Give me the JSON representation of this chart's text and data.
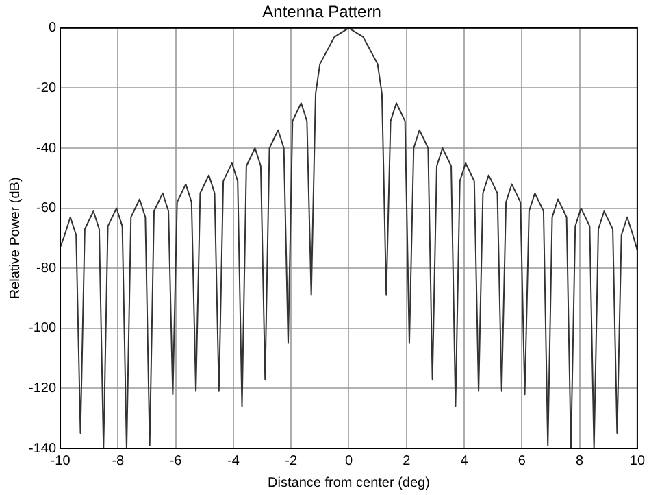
{
  "chart_data": {
    "type": "line",
    "title": "Antenna Pattern",
    "xlabel": "Distance from center (deg)",
    "ylabel": "Relative Power (dB)",
    "x": [
      -10,
      -9.85,
      -9.65,
      -9.45,
      -9.3,
      -9.15,
      -8.85,
      -8.65,
      -8.5,
      -8.35,
      -8.05,
      -7.85,
      -7.7,
      -7.55,
      -7.25,
      -7.05,
      -6.9,
      -6.75,
      -6.45,
      -6.25,
      -6.1,
      -5.95,
      -5.65,
      -5.45,
      -5.3,
      -5.15,
      -4.85,
      -4.65,
      -4.5,
      -4.35,
      -4.05,
      -3.85,
      -3.7,
      -3.55,
      -3.25,
      -3.05,
      -2.9,
      -2.75,
      -2.45,
      -2.25,
      -2.1,
      -1.95,
      -1.65,
      -1.45,
      -1.3,
      -1.15,
      -1,
      -0.5,
      0,
      0.5,
      1,
      1.15,
      1.3,
      1.45,
      1.65,
      1.95,
      2.1,
      2.25,
      2.45,
      2.75,
      2.9,
      3.05,
      3.25,
      3.55,
      3.7,
      3.85,
      4.05,
      4.35,
      4.5,
      4.65,
      4.85,
      5.15,
      5.3,
      5.45,
      5.65,
      5.95,
      6.1,
      6.25,
      6.45,
      6.75,
      6.9,
      7.05,
      7.25,
      7.55,
      7.7,
      7.85,
      8.05,
      8.35,
      8.5,
      8.65,
      8.85,
      9.15,
      9.3,
      9.45,
      9.65,
      9.85,
      10
    ],
    "series": [
      {
        "color": "#333333",
        "values": [
          -73,
          -69,
          -63,
          -69,
          -135,
          -67,
          -61,
          -67,
          -140,
          -66,
          -60,
          -66,
          -140,
          -63,
          -57,
          -63,
          -139,
          -61,
          -55,
          -61,
          -122,
          -58,
          -52,
          -58,
          -121,
          -55,
          -49,
          -55,
          -121,
          -51,
          -45,
          -51,
          -126,
          -46,
          -40,
          -46,
          -117,
          -40,
          -34,
          -40,
          -105,
          -31,
          -25,
          -31,
          -89,
          -22,
          -12,
          -3,
          0,
          -3,
          -12,
          -22,
          -89,
          -31,
          -25,
          -31,
          -105,
          -40,
          -34,
          -40,
          -117,
          -46,
          -40,
          -46,
          -126,
          -51,
          -45,
          -51,
          -121,
          -55,
          -49,
          -55,
          -121,
          -58,
          -52,
          -58,
          -122,
          -61,
          -55,
          -61,
          -139,
          -63,
          -57,
          -63,
          -140,
          -66,
          -60,
          -66,
          -140,
          -67,
          -61,
          -67,
          -135,
          -69,
          -63,
          -69,
          -74
        ]
      }
    ],
    "xlim": [
      -10,
      10
    ],
    "xticks": [
      -10,
      -8,
      -6,
      -4,
      -2,
      0,
      2,
      4,
      6,
      8,
      10
    ],
    "ylim": [
      -140,
      0
    ],
    "yticks": [
      -140,
      -120,
      -100,
      -80,
      -60,
      -40,
      -20,
      0
    ],
    "grid": true,
    "line_style": "solid",
    "marker": "none"
  }
}
